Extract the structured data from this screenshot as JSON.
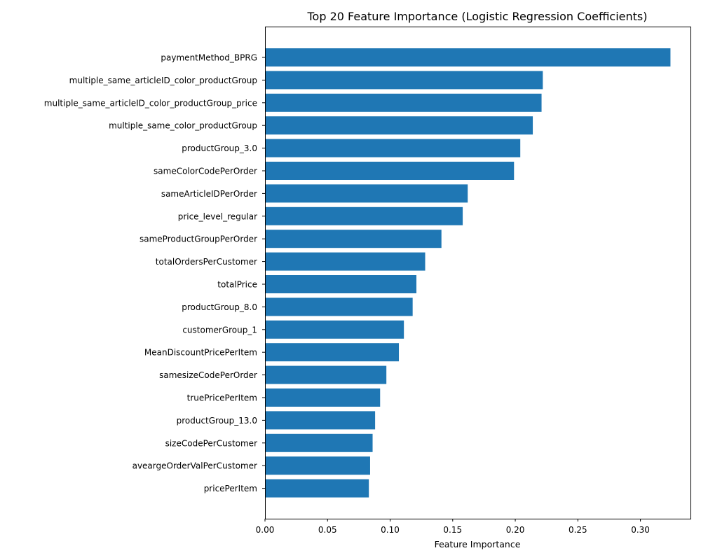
{
  "chart_data": {
    "type": "bar",
    "orientation": "horizontal",
    "title": "Top 20 Feature Importance (Logistic Regression Coefficients)",
    "xlabel": "Feature Importance",
    "ylabel": "",
    "xlim": [
      0,
      0.34
    ],
    "xticks": [
      0.0,
      0.05,
      0.1,
      0.15,
      0.2,
      0.25,
      0.3
    ],
    "xtick_labels": [
      "0.00",
      "0.05",
      "0.10",
      "0.15",
      "0.20",
      "0.25",
      "0.30"
    ],
    "grid": false,
    "bar_color": "#1f77b4",
    "categories": [
      "paymentMethod_BPRG",
      "multiple_same_articleID_color_productGroup",
      "multiple_same_articleID_color_productGroup_price",
      "multiple_same_color_productGroup",
      "productGroup_3.0",
      "sameColorCodePerOrder",
      "sameArticleIDPerOrder",
      "price_level_regular",
      "sameProductGroupPerOrder",
      "totalOrdersPerCustomer",
      "totalPrice",
      "productGroup_8.0",
      "customerGroup_1",
      "MeanDiscountPricePerItem",
      "samesizeCodePerOrder",
      "truePricePerItem",
      "productGroup_13.0",
      "sizeCodePerCustomer",
      "aveargeOrderValPerCustomer",
      "pricePerItem"
    ],
    "values": [
      0.324,
      0.222,
      0.221,
      0.214,
      0.204,
      0.199,
      0.162,
      0.158,
      0.141,
      0.128,
      0.121,
      0.118,
      0.111,
      0.107,
      0.097,
      0.092,
      0.088,
      0.086,
      0.084,
      0.083
    ]
  }
}
